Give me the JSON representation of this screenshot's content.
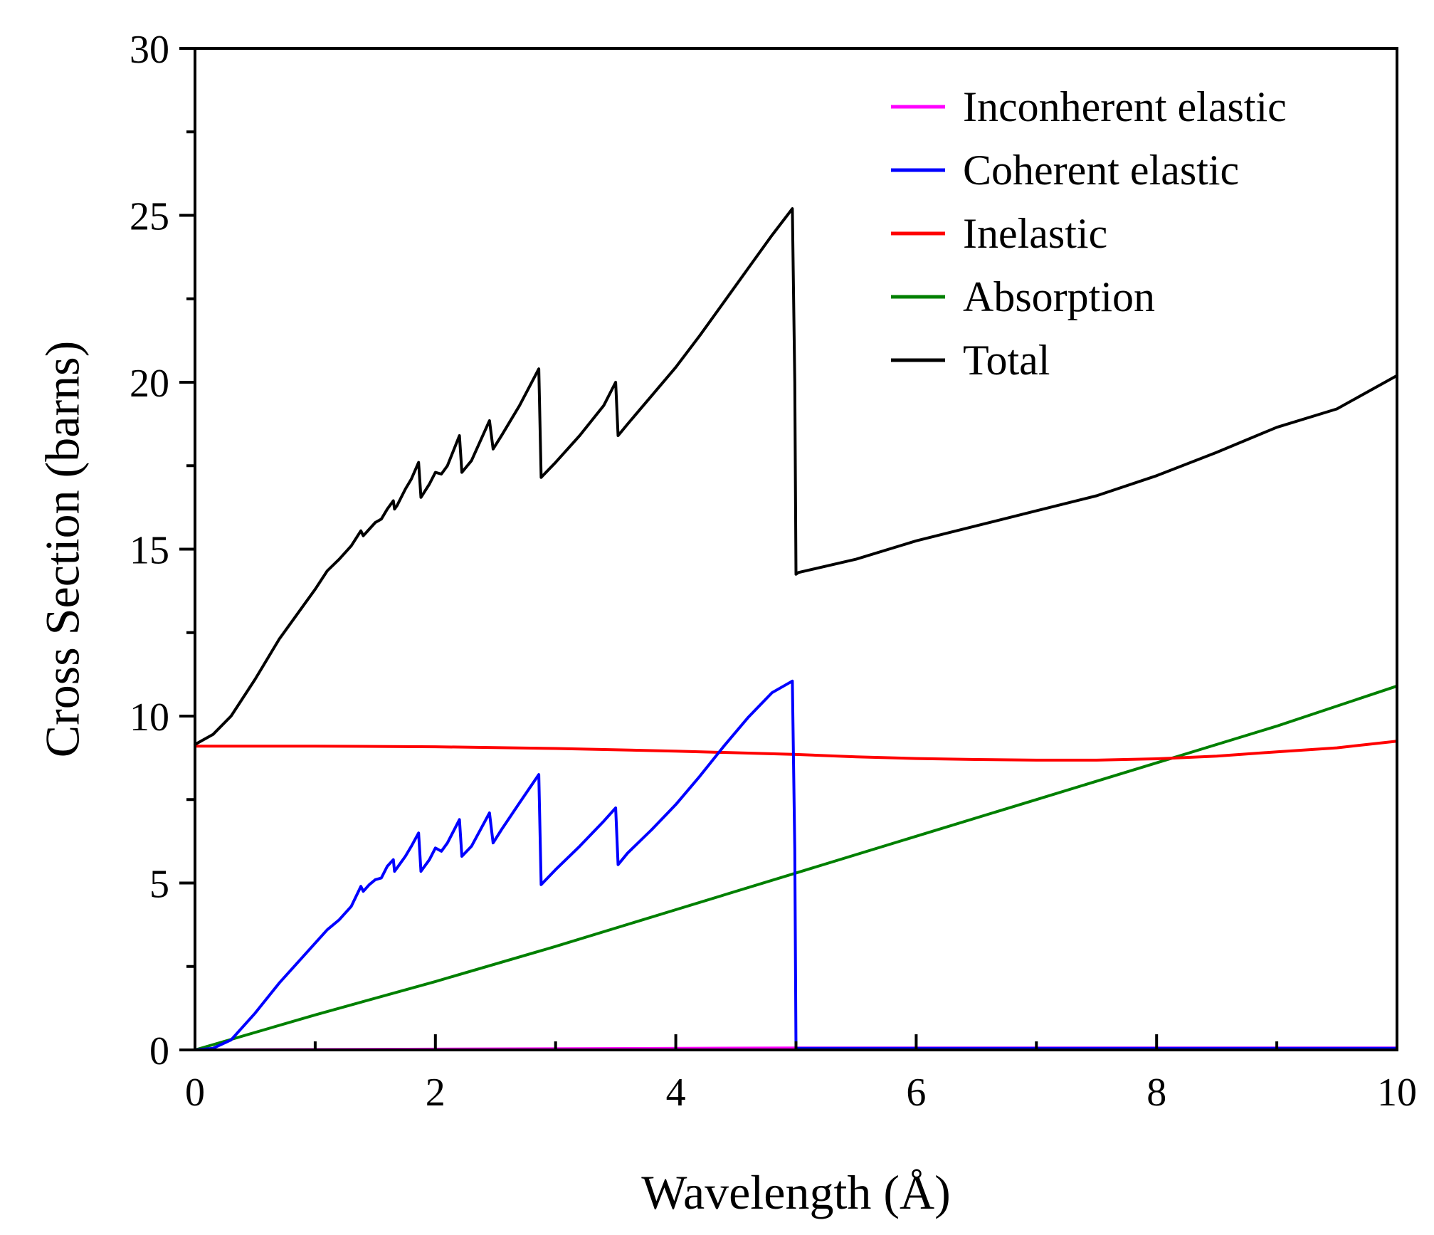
{
  "chart_data": {
    "type": "line",
    "title": "",
    "xlabel": "Wavelength (Å)",
    "ylabel": "Cross Section (barns)",
    "xlim": [
      0,
      10
    ],
    "ylim": [
      0,
      30
    ],
    "x_ticks": [
      0,
      2,
      4,
      6,
      8,
      10
    ],
    "x_tick_labels": [
      "0",
      "2",
      "4",
      "6",
      "8",
      "10"
    ],
    "y_ticks": [
      0,
      5,
      10,
      15,
      20,
      25,
      30
    ],
    "y_tick_labels": [
      "0",
      "5",
      "10",
      "15",
      "20",
      "25",
      "30"
    ],
    "grid": false,
    "legend_position": "top-right",
    "series": [
      {
        "name": "Inconherent elastic",
        "color": "#ff00ff",
        "x": [
          0,
          5,
          5.02,
          10
        ],
        "y": [
          0.0,
          0.06,
          0.06,
          0.06
        ]
      },
      {
        "name": "Coherent elastic",
        "color": "#0000ff",
        "x": [
          0,
          0.15,
          0.3,
          0.5,
          0.7,
          0.9,
          1.0,
          1.1,
          1.2,
          1.3,
          1.38,
          1.4,
          1.45,
          1.5,
          1.55,
          1.6,
          1.65,
          1.66,
          1.68,
          1.75,
          1.8,
          1.86,
          1.88,
          1.95,
          2.0,
          2.05,
          2.1,
          2.2,
          2.22,
          2.3,
          2.45,
          2.48,
          2.55,
          2.7,
          2.86,
          2.88,
          3.0,
          3.2,
          3.4,
          3.5,
          3.52,
          3.6,
          3.8,
          4.0,
          4.2,
          4.4,
          4.6,
          4.8,
          4.97,
          4.99,
          5.0,
          5.02,
          6,
          8,
          10
        ],
        "y": [
          0.0,
          0.05,
          0.3,
          1.1,
          2.0,
          2.8,
          3.2,
          3.6,
          3.9,
          4.3,
          4.9,
          4.75,
          4.95,
          5.1,
          5.15,
          5.5,
          5.7,
          5.35,
          5.45,
          5.8,
          6.1,
          6.5,
          5.35,
          5.7,
          6.05,
          5.95,
          6.2,
          6.9,
          5.8,
          6.1,
          7.1,
          6.2,
          6.6,
          7.4,
          8.25,
          4.95,
          5.4,
          6.1,
          6.85,
          7.25,
          5.55,
          5.9,
          6.6,
          7.35,
          8.2,
          9.1,
          9.95,
          10.7,
          11.05,
          6.0,
          0.05,
          0.05,
          0.05,
          0.05,
          0.05
        ]
      },
      {
        "name": "Inelastic",
        "color": "#ff0000",
        "x": [
          0,
          1,
          2,
          3,
          4,
          5,
          5.5,
          6,
          6.5,
          7,
          7.5,
          8,
          8.5,
          9,
          9.5,
          10
        ],
        "y": [
          9.1,
          9.1,
          9.08,
          9.03,
          8.95,
          8.85,
          8.78,
          8.73,
          8.7,
          8.68,
          8.68,
          8.72,
          8.8,
          8.93,
          9.05,
          9.25
        ]
      },
      {
        "name": "Absorption",
        "color": "#008000",
        "x": [
          0,
          1,
          2,
          3,
          4,
          5,
          6,
          7,
          8,
          9,
          10
        ],
        "y": [
          0.0,
          1.05,
          2.05,
          3.1,
          4.2,
          5.3,
          6.4,
          7.5,
          8.6,
          9.7,
          10.9
        ]
      },
      {
        "name": "Total",
        "color": "#000000",
        "x": [
          0,
          0.15,
          0.3,
          0.5,
          0.7,
          0.9,
          1.0,
          1.1,
          1.2,
          1.3,
          1.38,
          1.4,
          1.45,
          1.5,
          1.55,
          1.6,
          1.65,
          1.66,
          1.68,
          1.75,
          1.8,
          1.86,
          1.88,
          1.95,
          2.0,
          2.05,
          2.1,
          2.2,
          2.22,
          2.3,
          2.45,
          2.48,
          2.55,
          2.7,
          2.86,
          2.88,
          3.0,
          3.2,
          3.4,
          3.5,
          3.52,
          3.6,
          3.8,
          4.0,
          4.2,
          4.4,
          4.6,
          4.8,
          4.97,
          4.99,
          5.0,
          5.02,
          5.5,
          6.0,
          6.5,
          7.0,
          7.5,
          8.0,
          8.5,
          9.0,
          9.5,
          10.0
        ],
        "y": [
          9.15,
          9.45,
          10.0,
          11.1,
          12.3,
          13.3,
          13.8,
          14.35,
          14.7,
          15.1,
          15.55,
          15.4,
          15.6,
          15.8,
          15.9,
          16.2,
          16.45,
          16.2,
          16.3,
          16.8,
          17.1,
          17.6,
          16.55,
          16.95,
          17.3,
          17.25,
          17.5,
          18.4,
          17.3,
          17.65,
          18.85,
          18.0,
          18.4,
          19.3,
          20.4,
          17.15,
          17.6,
          18.4,
          19.3,
          20.0,
          18.4,
          18.75,
          19.6,
          20.45,
          21.4,
          22.4,
          23.4,
          24.4,
          25.2,
          20.0,
          14.25,
          14.3,
          14.7,
          15.25,
          15.7,
          16.15,
          16.6,
          17.2,
          17.9,
          18.65,
          19.2,
          20.2
        ]
      }
    ]
  }
}
